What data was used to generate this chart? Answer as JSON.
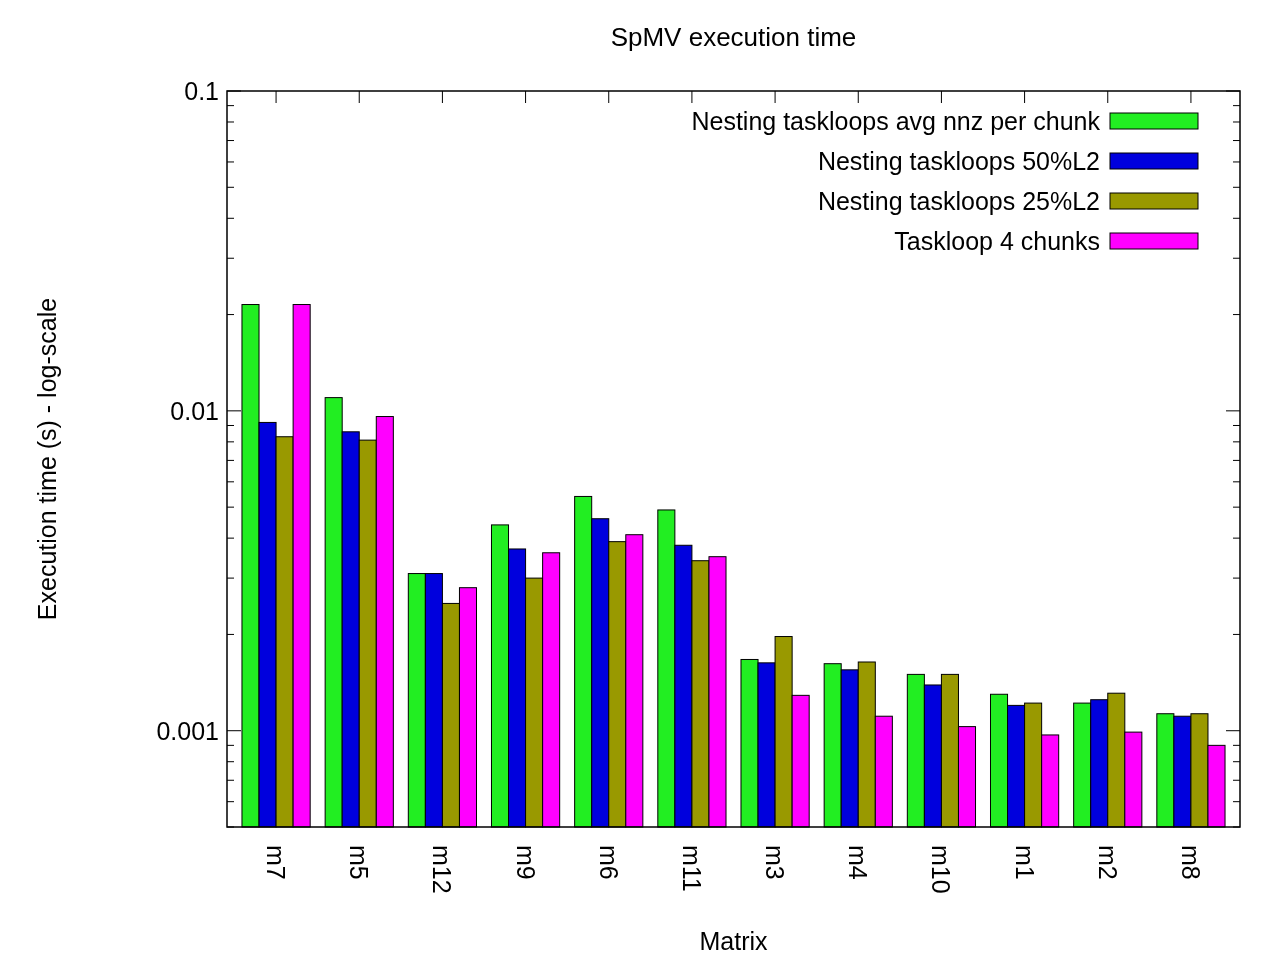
{
  "chart_data": {
    "type": "bar",
    "title": "SpMV execution time",
    "xlabel": "Matrix",
    "ylabel": "Execution time (s) - log-scale",
    "log": "y",
    "legend": "top right",
    "ylim": [
      0.0005,
      0.1
    ],
    "yticks": [
      {
        "value": 0.0005,
        "label": null
      },
      {
        "value": 0.0006,
        "label": null
      },
      {
        "value": 0.0007,
        "label": null
      },
      {
        "value": 0.0008,
        "label": null
      },
      {
        "value": 0.0009,
        "label": null
      },
      0.001,
      {
        "value": 0.002,
        "label": null
      },
      {
        "value": 0.003,
        "label": null
      },
      {
        "value": 0.004,
        "label": null
      },
      {
        "value": 0.005,
        "label": null
      },
      {
        "value": 0.006,
        "label": null
      },
      {
        "value": 0.007,
        "label": null
      },
      {
        "value": 0.008,
        "label": null
      },
      {
        "value": 0.009,
        "label": null
      },
      0.01,
      {
        "value": 0.02,
        "label": null
      },
      {
        "value": 0.03,
        "label": null
      },
      {
        "value": 0.04,
        "label": null
      },
      {
        "value": 0.05,
        "label": null
      },
      {
        "value": 0.06,
        "label": null
      },
      {
        "value": 0.07,
        "label": null
      },
      {
        "value": 0.08,
        "label": null
      },
      {
        "value": 0.09,
        "label": null
      },
      0.1
    ],
    "categories": [
      "m7",
      "m5",
      "m12",
      "m9",
      "m6",
      "m11",
      "m3",
      "m4",
      "m10",
      "m1",
      "m2",
      "m8"
    ],
    "series": [
      {
        "name": "Nesting taskloops avg nnz per chunk",
        "color": "#22ee22",
        "values": [
          0.0215,
          0.011,
          0.0031,
          0.0044,
          0.0054,
          0.0049,
          0.00167,
          0.00162,
          0.0015,
          0.0013,
          0.00122,
          0.00113
        ]
      },
      {
        "name": "Nesting taskloops 50%L2",
        "color": "#0000dd",
        "values": [
          0.0092,
          0.0086,
          0.0031,
          0.0037,
          0.0046,
          0.0038,
          0.00163,
          0.00155,
          0.00139,
          0.0012,
          0.00125,
          0.00111
        ]
      },
      {
        "name": "Nesting taskloops 25%L2",
        "color": "#999900",
        "values": [
          0.0083,
          0.0081,
          0.0025,
          0.003,
          0.0039,
          0.0034,
          0.00197,
          0.00164,
          0.0015,
          0.00122,
          0.00131,
          0.00113
        ]
      },
      {
        "name": "Taskloop 4 chunks",
        "color": "#ff00ff",
        "values": [
          0.0215,
          0.0096,
          0.0028,
          0.0036,
          0.0041,
          0.0035,
          0.00129,
          0.00111,
          0.00103,
          0.00097,
          0.00099,
          0.0009
        ]
      }
    ]
  }
}
